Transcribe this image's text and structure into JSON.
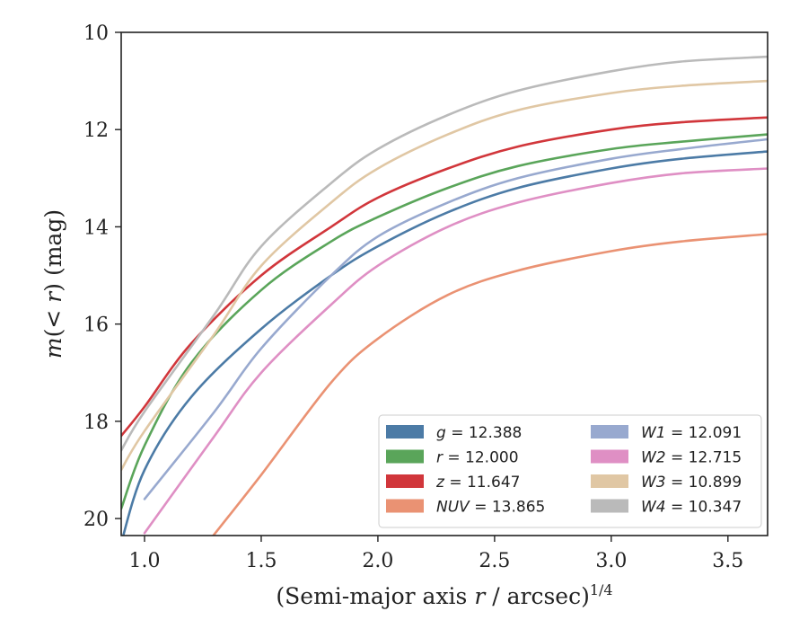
{
  "chart_data": {
    "type": "line",
    "xlabel": "(Semi-major axis r / arcsec)",
    "xlabel_r": "r",
    "xlabel_exp": "1/4",
    "ylabel": "m(< r) (mag)",
    "xlim": [
      0.9,
      3.67
    ],
    "ylim": [
      20.35,
      10.0
    ],
    "y_inverted": true,
    "x_ticks": [
      1.0,
      1.5,
      2.0,
      2.5,
      3.0,
      3.5
    ],
    "x_tick_labels": [
      "1.0",
      "1.5",
      "2.0",
      "2.5",
      "3.0",
      "3.5"
    ],
    "y_ticks": [
      10,
      12,
      14,
      16,
      18,
      20
    ],
    "y_tick_labels": [
      "10",
      "12",
      "14",
      "16",
      "18",
      "20"
    ],
    "grid": false,
    "legend_position": "lower-right",
    "series": [
      {
        "name": "g",
        "label": "g = 12.388",
        "color": "#4c7ba6",
        "x": [
          0.9,
          1.0,
          1.2,
          1.5,
          1.8,
          2.0,
          2.3,
          2.6,
          3.0,
          3.3,
          3.67
        ],
        "y": [
          20.5,
          19.0,
          17.5,
          16.1,
          15.0,
          14.4,
          13.7,
          13.2,
          12.8,
          12.6,
          12.45
        ]
      },
      {
        "name": "r",
        "label": "r = 12.000",
        "color": "#5aa55a",
        "x": [
          0.9,
          1.0,
          1.2,
          1.5,
          1.8,
          2.0,
          2.3,
          2.6,
          3.0,
          3.3,
          3.67
        ],
        "y": [
          19.8,
          18.5,
          16.8,
          15.3,
          14.3,
          13.8,
          13.2,
          12.75,
          12.4,
          12.25,
          12.1
        ]
      },
      {
        "name": "z",
        "label": "z = 11.647",
        "color": "#d1363b",
        "x": [
          0.9,
          1.0,
          1.2,
          1.5,
          1.8,
          2.0,
          2.3,
          2.6,
          3.0,
          3.3,
          3.67
        ],
        "y": [
          18.3,
          17.7,
          16.4,
          15.0,
          14.0,
          13.4,
          12.8,
          12.35,
          12.0,
          11.85,
          11.75
        ]
      },
      {
        "name": "NUV",
        "label": "NUV = 13.865",
        "color": "#ea9273",
        "x": [
          1.27,
          1.5,
          1.8,
          2.0,
          2.3,
          2.6,
          3.0,
          3.3,
          3.67
        ],
        "y": [
          20.5,
          19.1,
          17.2,
          16.3,
          15.4,
          14.9,
          14.5,
          14.3,
          14.15
        ]
      },
      {
        "name": "W1",
        "label": "W1 = 12.091",
        "color": "#98a9cf",
        "x": [
          1.0,
          1.3,
          1.5,
          1.8,
          2.0,
          2.3,
          2.6,
          3.0,
          3.3,
          3.67
        ],
        "y": [
          19.6,
          17.8,
          16.5,
          15.0,
          14.2,
          13.5,
          13.0,
          12.6,
          12.4,
          12.2
        ]
      },
      {
        "name": "W2",
        "label": "W2 = 12.715",
        "color": "#df8fc4",
        "x": [
          1.0,
          1.3,
          1.5,
          1.8,
          2.0,
          2.3,
          2.6,
          3.0,
          3.3,
          3.67
        ],
        "y": [
          20.3,
          18.3,
          17.0,
          15.6,
          14.8,
          14.0,
          13.5,
          13.1,
          12.9,
          12.8
        ]
      },
      {
        "name": "W3",
        "label": "W3 = 10.899",
        "color": "#e0c7a4",
        "x": [
          0.9,
          1.0,
          1.3,
          1.5,
          1.8,
          2.0,
          2.3,
          2.6,
          3.0,
          3.3,
          3.67
        ],
        "y": [
          19.0,
          18.2,
          16.2,
          14.8,
          13.5,
          12.8,
          12.1,
          11.6,
          11.25,
          11.1,
          11.0
        ]
      },
      {
        "name": "W4",
        "label": "W4 = 10.347",
        "color": "#bababa",
        "x": [
          0.9,
          1.0,
          1.3,
          1.5,
          1.8,
          2.0,
          2.3,
          2.6,
          3.0,
          3.3,
          3.67
        ],
        "y": [
          18.6,
          17.8,
          15.8,
          14.4,
          13.1,
          12.4,
          11.7,
          11.2,
          10.8,
          10.6,
          10.5
        ]
      }
    ]
  }
}
